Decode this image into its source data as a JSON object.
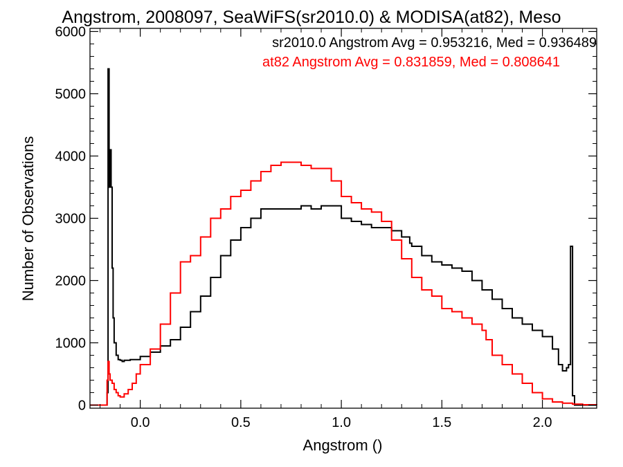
{
  "chart_data": {
    "type": "line",
    "style": "histogram-step",
    "title": "Angstrom, 2008097, SeaWiFS(sr2010.0) & MODISA(at82), Meso",
    "xlabel": "Angstrom ()",
    "ylabel": "Number of Observations",
    "xlim": [
      -0.25,
      2.27
    ],
    "ylim": [
      -50,
      6050
    ],
    "xticks": [
      0.0,
      0.5,
      1.0,
      1.5,
      2.0
    ],
    "xtick_labels": [
      "0.0",
      "0.5",
      "1.0",
      "1.5",
      "2.0"
    ],
    "yticks": [
      0,
      1000,
      2000,
      3000,
      4000,
      5000,
      6000
    ],
    "ytick_labels": [
      "0",
      "1000",
      "2000",
      "3000",
      "4000",
      "5000",
      "6000"
    ],
    "grid": false,
    "annotations": [
      {
        "text": "sr2010.0 Angstrom Avg = 0.953216, Med = 0.936489",
        "color": "#000000"
      },
      {
        "text": "at82 Angstrom Avg = 0.831859, Med = 0.808641",
        "color": "#ff0000"
      }
    ],
    "series": [
      {
        "color": "#000000",
        "x": [
          -0.25,
          -0.17,
          -0.165,
          -0.16,
          -0.155,
          -0.15,
          -0.145,
          -0.14,
          -0.135,
          -0.13,
          -0.12,
          -0.11,
          -0.1,
          -0.09,
          -0.08,
          -0.05,
          0.0,
          0.05,
          0.1,
          0.15,
          0.2,
          0.25,
          0.3,
          0.35,
          0.4,
          0.45,
          0.5,
          0.55,
          0.6,
          0.65,
          0.7,
          0.75,
          0.8,
          0.85,
          0.9,
          0.95,
          1.0,
          1.05,
          1.1,
          1.15,
          1.2,
          1.25,
          1.3,
          1.34,
          1.35,
          1.4,
          1.45,
          1.5,
          1.55,
          1.6,
          1.65,
          1.7,
          1.75,
          1.8,
          1.85,
          1.9,
          1.95,
          2.0,
          2.05,
          2.08,
          2.1,
          2.12,
          2.13,
          2.14,
          2.15,
          2.16,
          2.27
        ],
        "y": [
          0,
          0,
          200,
          5400,
          3500,
          4100,
          3500,
          2200,
          1400,
          1000,
          800,
          730,
          720,
          700,
          720,
          730,
          780,
          850,
          950,
          1050,
          1250,
          1500,
          1750,
          2050,
          2400,
          2650,
          2850,
          3000,
          3150,
          3150,
          3150,
          3150,
          3200,
          3150,
          3200,
          3200,
          3000,
          2950,
          2900,
          2850,
          2850,
          2800,
          2700,
          2600,
          2550,
          2400,
          2300,
          2250,
          2200,
          2150,
          2000,
          1850,
          1700,
          1550,
          1400,
          1300,
          1200,
          1100,
          900,
          650,
          550,
          600,
          650,
          2550,
          150,
          0,
          0
        ]
      },
      {
        "color": "#ff0000",
        "x": [
          -0.25,
          -0.17,
          -0.165,
          -0.16,
          -0.155,
          -0.15,
          -0.14,
          -0.13,
          -0.12,
          -0.11,
          -0.1,
          -0.08,
          -0.06,
          -0.04,
          -0.02,
          0.0,
          0.05,
          0.1,
          0.15,
          0.2,
          0.25,
          0.3,
          0.35,
          0.4,
          0.45,
          0.5,
          0.55,
          0.6,
          0.65,
          0.7,
          0.75,
          0.8,
          0.85,
          0.9,
          0.95,
          1.0,
          1.05,
          1.1,
          1.15,
          1.2,
          1.25,
          1.3,
          1.35,
          1.4,
          1.45,
          1.5,
          1.55,
          1.6,
          1.65,
          1.7,
          1.72,
          1.75,
          1.8,
          1.85,
          1.9,
          1.95,
          2.0,
          2.05,
          2.1,
          2.15,
          2.2,
          2.27
        ],
        "y": [
          0,
          0,
          400,
          700,
          500,
          400,
          350,
          250,
          200,
          150,
          130,
          180,
          250,
          350,
          500,
          650,
          900,
          1300,
          1800,
          2300,
          2400,
          2700,
          3000,
          3150,
          3350,
          3450,
          3600,
          3750,
          3850,
          3900,
          3900,
          3850,
          3800,
          3800,
          3600,
          3350,
          3250,
          3150,
          3100,
          2950,
          2650,
          2350,
          2050,
          1850,
          1750,
          1550,
          1500,
          1400,
          1300,
          1200,
          1050,
          800,
          650,
          500,
          350,
          200,
          100,
          50,
          30,
          15,
          5,
          0
        ]
      }
    ]
  }
}
